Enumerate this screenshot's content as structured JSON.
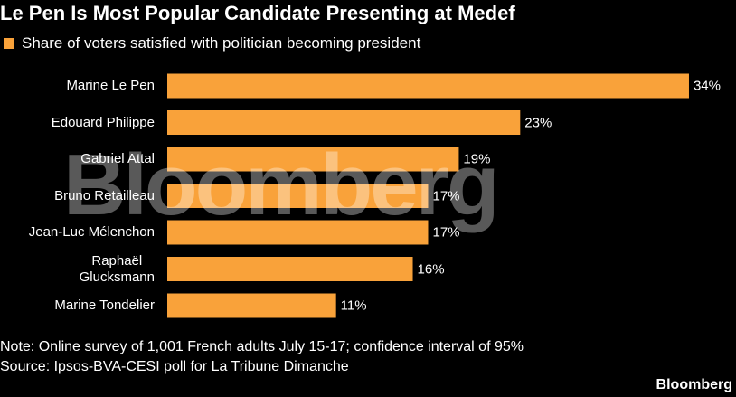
{
  "chart_data": {
    "type": "bar",
    "orientation": "horizontal",
    "title": "Le Pen Is Most Popular Candidate Presenting at Medef",
    "categories": [
      "Marine Le Pen",
      "Edouard Philippe",
      "Gabriel Attal",
      "Bruno Retailleau",
      "Jean-Luc Mélenchon",
      "Raphaël\nGlucksmann",
      "Marine Tondelier"
    ],
    "series": [
      {
        "name": "Share of voters satisfied with politician becoming president",
        "color": "#f9a23a",
        "values": [
          34,
          23,
          19,
          17,
          17,
          16,
          11
        ],
        "value_labels": [
          "34%",
          "23%",
          "19%",
          "17%",
          "17%",
          "16%",
          "11%"
        ]
      }
    ],
    "note": "Note: Online survey of 1,001 French adults July 15-17; confidence interval of 95%",
    "source": "Source: Ipsos-BVA-CESI poll for La Tribune Dimanche",
    "brand": "Bloomberg",
    "watermark": "Bloomberg"
  }
}
